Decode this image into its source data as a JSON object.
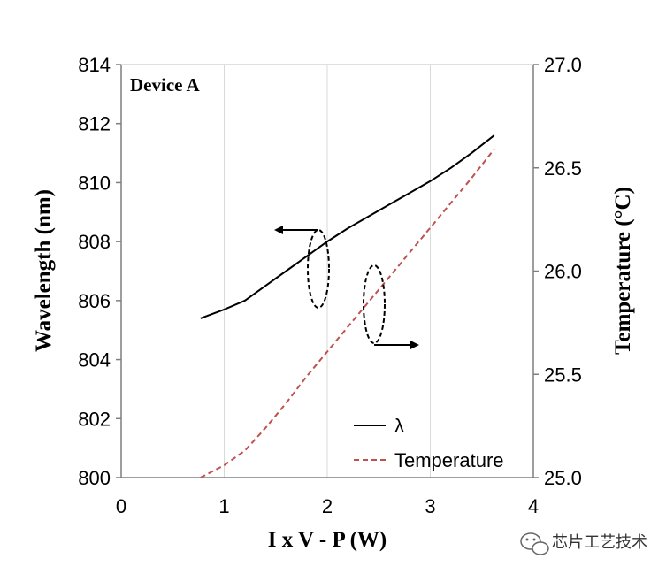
{
  "chart_data": {
    "type": "line",
    "annotation": "Device A",
    "xlabel": "I x V - P (W)",
    "ylabel": "Wavelength (nm)",
    "y2label": "Temperature (°C)",
    "xlim": [
      0,
      4
    ],
    "ylim": [
      800,
      814
    ],
    "y2lim": [
      25.0,
      27.0
    ],
    "x_ticks": [
      "0",
      "1",
      "2",
      "3",
      "4"
    ],
    "y_ticks": [
      "800",
      "802",
      "804",
      "806",
      "808",
      "810",
      "812",
      "814"
    ],
    "y2_ticks": [
      "25.0",
      "25.5",
      "26.0",
      "26.5",
      "27.0"
    ],
    "grid": "vertical",
    "legend_position": "bottom-right",
    "series": [
      {
        "name": "λ",
        "axis": "left",
        "style": "solid",
        "color": "#000000",
        "x": [
          0.77,
          1.0,
          1.2,
          1.4,
          1.6,
          1.8,
          2.0,
          2.2,
          2.4,
          2.6,
          2.8,
          3.0,
          3.2,
          3.4,
          3.62
        ],
        "y": [
          805.4,
          805.7,
          806.0,
          806.5,
          807.0,
          807.5,
          808.0,
          808.45,
          808.85,
          809.25,
          809.65,
          810.05,
          810.5,
          811.0,
          811.6
        ]
      },
      {
        "name": "Temperature",
        "axis": "right",
        "style": "dashed",
        "color": "#c0504d",
        "x": [
          0.77,
          1.0,
          1.2,
          1.4,
          1.6,
          1.8,
          2.0,
          2.2,
          2.4,
          2.6,
          2.8,
          3.0,
          3.2,
          3.4,
          3.62
        ],
        "y": [
          25.0,
          25.06,
          25.13,
          25.24,
          25.36,
          25.49,
          25.61,
          25.73,
          25.85,
          25.97,
          26.09,
          26.21,
          26.33,
          26.45,
          26.59
        ]
      }
    ]
  },
  "watermark": {
    "text": "芯片工艺技术",
    "icon": "wechat-icon"
  }
}
